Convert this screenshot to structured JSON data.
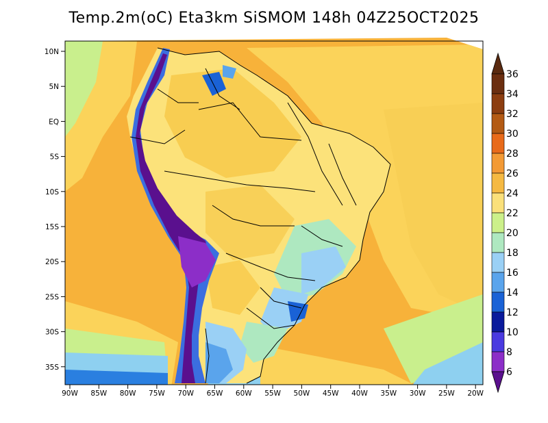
{
  "title": "Temp.2m(oC) Eta3km SiSMOM 148h 04Z25OCT2025",
  "lat_labels": [
    "10N",
    "5N",
    "EQ",
    "5S",
    "10S",
    "15S",
    "20S",
    "25S",
    "30S",
    "35S"
  ],
  "lon_labels": [
    "90W",
    "85W",
    "80W",
    "75W",
    "70W",
    "65W",
    "60W",
    "55W",
    "50W",
    "45W",
    "40W",
    "35W",
    "30W",
    "25W",
    "20W"
  ],
  "colorbar": {
    "labels": [
      "36",
      "34",
      "32",
      "30",
      "28",
      "26",
      "24",
      "22",
      "20",
      "18",
      "16",
      "14",
      "12",
      "10",
      "8",
      "6"
    ],
    "colors": [
      "#6b2e10",
      "#8c3d10",
      "#b35a14",
      "#e86a1a",
      "#f39a35",
      "#f5b942",
      "#fae07a",
      "#ccf08a",
      "#aee8c0",
      "#9ad0f5",
      "#5aa4ec",
      "#1a62d6",
      "#0a1a9c",
      "#4a3ae0",
      "#8c2ec8",
      "#5a108e"
    ],
    "top_arrow_color": "#5a2a10",
    "bottom_arrow_color": "#5a108e"
  },
  "field_colors": {
    "ocean_warm": "#f7b23a",
    "ocean_mid": "#fbd35a",
    "ocean_cool": "#c9ef8d",
    "coast_cool": "#8ed0f0",
    "land": "#fce27a",
    "land_warm": "#f7c94a",
    "andes_cold": "#5a108e",
    "andes_mid": "#3b6ee0",
    "southern_cold": "#2a7fe0"
  }
}
